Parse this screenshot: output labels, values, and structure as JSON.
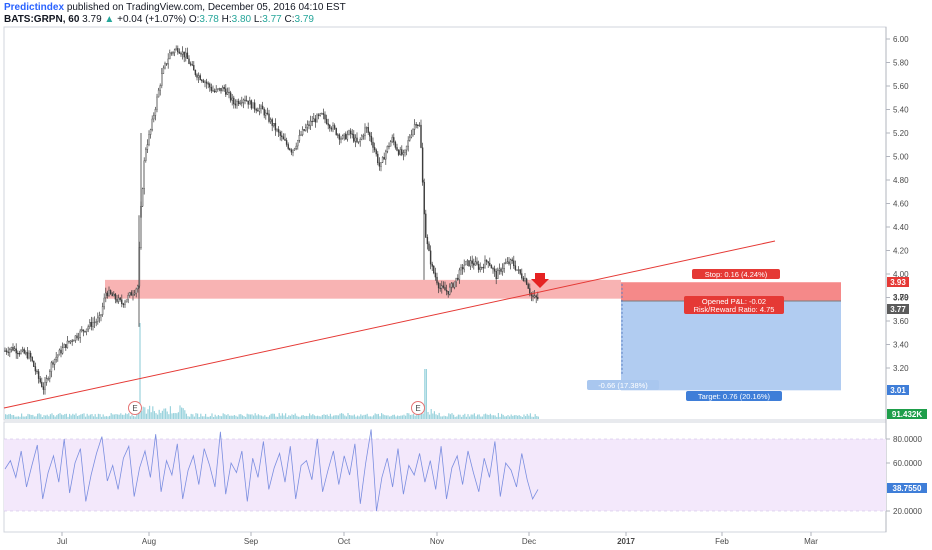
{
  "header": {
    "brand": "Predictindex",
    "published": "published on TradingView.com, December 05, 2016 04:10 EST",
    "symbol": "BATS:GRPN, 60",
    "last": "3.79",
    "arrow": "▲",
    "change": "+0.04 (+1.07%)",
    "o_label": "O:",
    "o_value": "3.78",
    "h_label": "H:",
    "h_value": "3.80",
    "l_label": "L:",
    "l_value": "3.77",
    "c_label": "C:",
    "c_value": "3.79"
  },
  "colors": {
    "candle": "#3a3a3a",
    "trendline": "#e53935",
    "zone": "#f7a6a6",
    "stop_box": "#f47c7c",
    "target_box": "#a9c7ef",
    "rsi_band": "#f3e8fb",
    "rsi_line": "#7b8ee0",
    "volume": "#9bd3dd"
  },
  "chart_data": {
    "type": "candlestick",
    "price_axis": {
      "ticks": [
        "6.00",
        "5.80",
        "5.60",
        "5.40",
        "5.20",
        "5.00",
        "4.80",
        "4.60",
        "4.40",
        "4.20",
        "4.00",
        "3.80",
        "3.60",
        "3.40",
        "3.20"
      ],
      "tick_values": [
        6.0,
        5.8,
        5.6,
        5.4,
        5.2,
        5.0,
        4.8,
        4.6,
        4.4,
        4.2,
        4.0,
        3.8,
        3.6,
        3.4,
        3.2
      ],
      "range": [
        3.0,
        6.1
      ]
    },
    "time_axis": {
      "labels": [
        "Jul",
        "Aug",
        "Sep",
        "Oct",
        "Nov",
        "Dec",
        "2017",
        "Feb",
        "Mar"
      ]
    },
    "price_path": [
      [
        0,
        3.33
      ],
      [
        12,
        3.37
      ],
      [
        30,
        3.3
      ],
      [
        38,
        3.12
      ],
      [
        44,
        3.02
      ],
      [
        52,
        3.25
      ],
      [
        66,
        3.4
      ],
      [
        80,
        3.5
      ],
      [
        92,
        3.58
      ],
      [
        100,
        3.62
      ],
      [
        106,
        3.85
      ],
      [
        114,
        3.8
      ],
      [
        122,
        3.75
      ],
      [
        130,
        3.82
      ],
      [
        138,
        3.9
      ],
      [
        141,
        4.55
      ],
      [
        145,
        5.05
      ],
      [
        150,
        5.2
      ],
      [
        156,
        5.45
      ],
      [
        162,
        5.7
      ],
      [
        170,
        5.88
      ],
      [
        178,
        5.92
      ],
      [
        186,
        5.85
      ],
      [
        194,
        5.72
      ],
      [
        204,
        5.65
      ],
      [
        214,
        5.55
      ],
      [
        224,
        5.58
      ],
      [
        234,
        5.45
      ],
      [
        244,
        5.5
      ],
      [
        254,
        5.42
      ],
      [
        262,
        5.4
      ],
      [
        272,
        5.28
      ],
      [
        282,
        5.15
      ],
      [
        292,
        5.05
      ],
      [
        302,
        5.2
      ],
      [
        312,
        5.3
      ],
      [
        322,
        5.35
      ],
      [
        332,
        5.25
      ],
      [
        342,
        5.15
      ],
      [
        350,
        5.2
      ],
      [
        358,
        5.1
      ],
      [
        366,
        5.25
      ],
      [
        374,
        5.08
      ],
      [
        380,
        4.9
      ],
      [
        386,
        5.05
      ],
      [
        392,
        5.15
      ],
      [
        398,
        5.05
      ],
      [
        404,
        5.0
      ],
      [
        410,
        5.18
      ],
      [
        416,
        5.3
      ],
      [
        420,
        5.25
      ],
      [
        423,
        4.7
      ],
      [
        426,
        4.3
      ],
      [
        432,
        4.05
      ],
      [
        440,
        3.88
      ],
      [
        448,
        3.85
      ],
      [
        456,
        3.95
      ],
      [
        464,
        4.08
      ],
      [
        472,
        4.1
      ],
      [
        480,
        4.05
      ],
      [
        488,
        4.12
      ],
      [
        496,
        3.98
      ],
      [
        504,
        4.08
      ],
      [
        512,
        4.1
      ],
      [
        520,
        4.0
      ],
      [
        526,
        3.95
      ],
      [
        532,
        3.8
      ],
      [
        538,
        3.79
      ]
    ],
    "levels": {
      "zone_top": 3.95,
      "zone_bottom": 3.79,
      "stop": 3.93,
      "entry": 3.77,
      "target": 3.01
    },
    "price_tags": {
      "stop": "3.93",
      "last": "3.79",
      "entry": "3.77",
      "target": "3.01",
      "volume": "91.432K"
    },
    "annotations": {
      "stop": "Stop: 0.16 (4.24%)",
      "opened": "Opened P&L: -0.02",
      "risk_reward": "Risk/Reward Ratio: 4.75",
      "target": "Target: 0.76 (20.16%)",
      "measure": "-0.66 (17.38%)",
      "earnings_1": "E",
      "earnings_2": "E"
    },
    "rsi": {
      "ticks": [
        "80.0000",
        "60.0000",
        "20.0000"
      ],
      "tick_values": [
        80,
        60,
        20
      ],
      "range": [
        10,
        95
      ],
      "band": [
        20,
        80
      ],
      "current": "38.7550",
      "series": [
        55,
        62,
        48,
        70,
        40,
        58,
        75,
        30,
        52,
        66,
        44,
        80,
        35,
        60,
        72,
        28,
        50,
        68,
        82,
        45,
        58,
        38,
        64,
        74,
        32,
        56,
        70,
        48,
        84,
        36,
        62,
        50,
        76,
        30,
        54,
        66,
        42,
        72,
        58,
        40,
        86,
        34,
        60,
        52,
        70,
        28,
        64,
        48,
        78,
        38,
        56,
        68,
        44,
        74,
        30,
        58,
        62,
        46,
        80,
        36,
        54,
        70,
        42,
        66,
        50,
        76,
        26,
        60,
        88,
        20,
        48,
        64,
        40,
        72,
        34,
        58,
        50,
        68,
        44,
        62,
        38,
        74,
        30,
        56,
        66,
        42,
        70,
        52,
        36,
        64,
        48,
        78,
        32,
        60,
        54,
        40,
        68,
        46,
        30,
        38
      ]
    }
  }
}
